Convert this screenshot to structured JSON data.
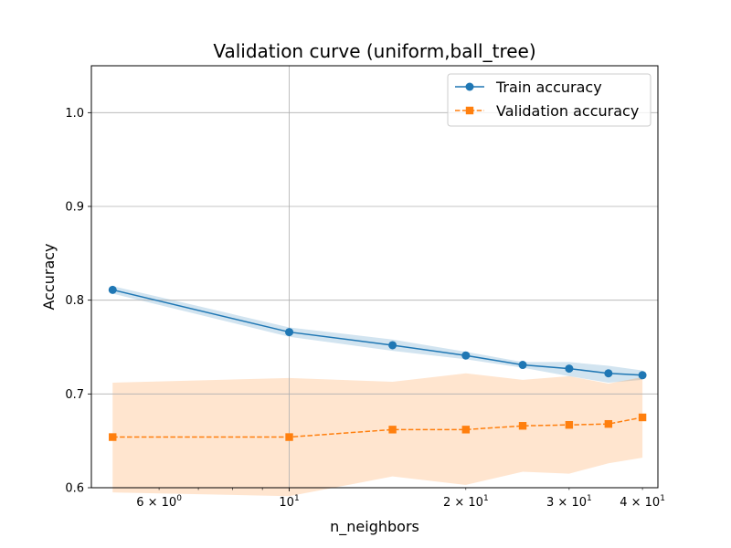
{
  "chart_data": {
    "type": "line",
    "title": "Validation curve (uniform,ball_tree)",
    "xlabel": "n_neighbors",
    "ylabel": "Accuracy",
    "xscale": "log",
    "xlim": [
      4.6,
      42.5
    ],
    "ylim": [
      0.6,
      1.05
    ],
    "grid": true,
    "legend_position": "top-right",
    "x": [
      5,
      10,
      15,
      20,
      25,
      30,
      35,
      40
    ],
    "series": [
      {
        "name": "Train accuracy",
        "color": "#1f77b4",
        "marker": "circle",
        "linestyle": "solid",
        "values": [
          0.811,
          0.766,
          0.752,
          0.741,
          0.731,
          0.727,
          0.722,
          0.72
        ],
        "band_lower": [
          0.807,
          0.761,
          0.746,
          0.737,
          0.728,
          0.719,
          0.712,
          0.715
        ],
        "band_upper": [
          0.815,
          0.771,
          0.758,
          0.745,
          0.734,
          0.734,
          0.73,
          0.725
        ]
      },
      {
        "name": "Validation accuracy",
        "color": "#ff7f0e",
        "marker": "square",
        "linestyle": "dashed",
        "values": [
          0.654,
          0.654,
          0.662,
          0.662,
          0.666,
          0.667,
          0.668,
          0.675
        ],
        "band_lower": [
          0.595,
          0.591,
          0.612,
          0.603,
          0.617,
          0.615,
          0.626,
          0.632
        ],
        "band_upper": [
          0.712,
          0.717,
          0.713,
          0.722,
          0.715,
          0.719,
          0.711,
          0.718
        ]
      }
    ],
    "y_ticks": [
      {
        "value": 0.6,
        "label": "0.6"
      },
      {
        "value": 0.7,
        "label": "0.7"
      },
      {
        "value": 0.8,
        "label": "0.8"
      },
      {
        "value": 0.9,
        "label": "0.9"
      },
      {
        "value": 1.0,
        "label": "1.0"
      }
    ],
    "x_major_ticks": [
      {
        "value": 10,
        "base": "10",
        "exp": "1"
      }
    ],
    "x_minor_ticks": [
      {
        "value": 6,
        "mant": "6",
        "base": "10",
        "exp": "0",
        "labeled": true
      },
      {
        "value": 7,
        "labeled": false
      },
      {
        "value": 8,
        "labeled": false
      },
      {
        "value": 9,
        "labeled": false
      },
      {
        "value": 20,
        "mant": "2",
        "base": "10",
        "exp": "1",
        "labeled": true
      },
      {
        "value": 30,
        "mant": "3",
        "base": "10",
        "exp": "1",
        "labeled": true
      },
      {
        "value": 40,
        "mant": "4",
        "base": "10",
        "exp": "1",
        "labeled": true
      }
    ]
  }
}
